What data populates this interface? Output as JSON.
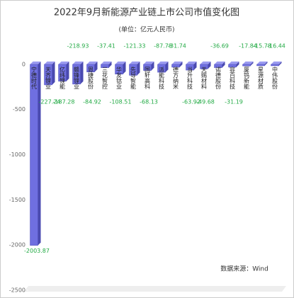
{
  "chart_data": {
    "type": "bar",
    "title": "2022年9月新能源产业链上市公司市值变化图",
    "subtitle": "(单位：亿元人民币)",
    "source": "数据来源：Wind",
    "categories": [
      "宁德时代",
      "天齐锂业",
      "亿纬锂能",
      "赣锋锂业",
      "恩捷股份",
      "三花智控",
      "华友钴业",
      "先导智能",
      "国轩高科",
      "派能科技",
      "德方纳米",
      "当升科技",
      "天赐材料",
      "诺德股份",
      "容百科技",
      "厦钨新能",
      "星源材质",
      "中伟股份"
    ],
    "values": [
      -2003.87,
      -227.24,
      -187.28,
      -218.93,
      -84.92,
      -37.41,
      -108.51,
      -121.33,
      -68.13,
      -87.78,
      -31.74,
      -63.92,
      -49.68,
      -36.69,
      -31.19,
      -17.84,
      -15.78,
      -16.44
    ],
    "color": "#6f6fe0",
    "value_label_color": "#22aa44",
    "ylim": [
      -2500,
      250
    ],
    "yticks": [
      0,
      -500,
      -1000,
      -1500,
      -2000,
      -2500
    ],
    "grid": false
  }
}
